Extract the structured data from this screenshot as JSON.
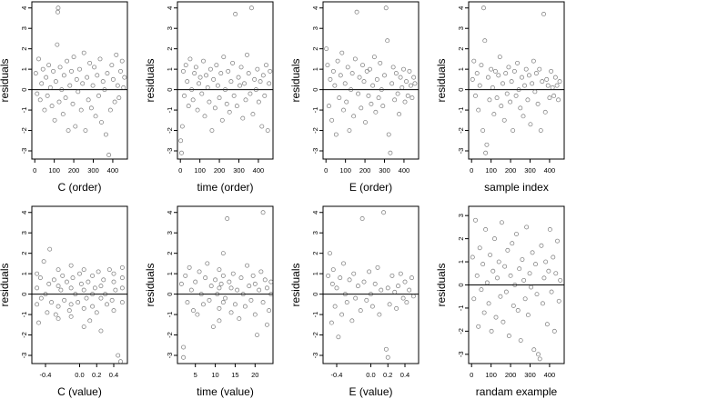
{
  "figure": {
    "panel_count": 8
  },
  "chart_data": [
    {
      "type": "scatter",
      "xlabel": "C (order)",
      "ylabel": "residuals",
      "xlim": [
        -15,
        475
      ],
      "ylim": [
        -3.4,
        4.3
      ],
      "xticks": [
        0,
        100,
        200,
        300,
        400
      ],
      "xtick_labels": [
        "0",
        "100",
        "200",
        "300",
        "400"
      ],
      "yticks": [
        -3,
        -2,
        -1,
        0,
        1,
        2,
        3,
        4
      ],
      "ytick_labels": [
        "-3",
        "-2",
        "-1",
        "0",
        "1",
        "2",
        "3",
        "4"
      ],
      "hline": 0,
      "x": [
        5,
        12,
        20,
        28,
        35,
        42,
        50,
        58,
        65,
        72,
        80,
        88,
        95,
        102,
        108,
        115,
        118,
        120,
        125,
        130,
        138,
        145,
        150,
        158,
        165,
        172,
        180,
        188,
        195,
        200,
        208,
        215,
        222,
        230,
        238,
        245,
        252,
        260,
        268,
        275,
        282,
        290,
        298,
        305,
        312,
        320,
        328,
        335,
        342,
        350,
        358,
        365,
        372,
        380,
        388,
        395,
        402,
        410,
        418,
        425,
        432,
        440,
        448,
        455,
        460
      ],
      "y": [
        0.8,
        -0.2,
        1.5,
        -0.5,
        0.3,
        1.0,
        -1.0,
        0.6,
        -0.3,
        1.2,
        0.1,
        -0.8,
        0.9,
        -1.5,
        0.4,
        2.2,
        3.8,
        4.0,
        -0.6,
        1.1,
        0.0,
        -1.2,
        0.7,
        -0.4,
        1.4,
        -2.0,
        0.2,
        0.9,
        -0.7,
        1.6,
        -1.8,
        0.5,
        -0.1,
        1.0,
        -1.0,
        0.3,
        1.8,
        -2.0,
        0.6,
        -0.5,
        1.3,
        -0.9,
        0.2,
        1.1,
        -1.3,
        0.7,
        -0.3,
        1.5,
        -1.6,
        0.4,
        0.0,
        -2.2,
        0.8,
        -3.2,
        -1.0,
        1.2,
        0.5,
        -0.6,
        1.7,
        0.2,
        -0.4,
        0.9,
        1.4,
        0.1,
        0.6
      ]
    },
    {
      "type": "scatter",
      "xlabel": "time (order)",
      "ylabel": "residuals",
      "xlim": [
        -15,
        475
      ],
      "ylim": [
        -3.4,
        4.3
      ],
      "xticks": [
        0,
        100,
        200,
        300,
        400
      ],
      "xtick_labels": [
        "0",
        "100",
        "200",
        "300",
        "400"
      ],
      "yticks": [
        -3,
        -2,
        -1,
        0,
        1,
        2,
        3,
        4
      ],
      "ytick_labels": [
        "-3",
        "-2",
        "-1",
        "0",
        "1",
        "2",
        "3",
        "4"
      ],
      "hline": 0,
      "x": [
        2,
        6,
        10,
        15,
        20,
        28,
        35,
        42,
        50,
        58,
        65,
        72,
        80,
        88,
        95,
        102,
        110,
        118,
        125,
        132,
        140,
        148,
        155,
        162,
        170,
        178,
        185,
        192,
        200,
        208,
        215,
        222,
        230,
        238,
        245,
        252,
        260,
        268,
        275,
        282,
        290,
        298,
        305,
        312,
        320,
        328,
        335,
        342,
        350,
        358,
        365,
        372,
        380,
        388,
        395,
        402,
        410,
        418,
        425,
        432,
        440,
        448,
        455,
        460
      ],
      "y": [
        -2.5,
        -3.1,
        -1.8,
        0.9,
        -0.3,
        1.2,
        0.4,
        -0.8,
        1.5,
        0.0,
        -0.5,
        0.8,
        1.1,
        -1.0,
        0.3,
        0.6,
        -0.2,
        1.4,
        -1.3,
        0.7,
        0.1,
        -0.6,
        1.0,
        -2.0,
        0.5,
        -0.9,
        1.2,
        0.2,
        -0.4,
        0.8,
        -1.5,
        1.6,
        0.0,
        -0.7,
        0.9,
        -1.1,
        0.4,
        1.3,
        -0.3,
        3.7,
        -0.8,
        0.6,
        0.2,
        1.1,
        -1.4,
        0.3,
        -0.5,
        1.7,
        0.8,
        -0.2,
        4.0,
        -1.2,
        0.5,
        0.0,
        1.0,
        -0.6,
        0.4,
        -1.8,
        0.7,
        -0.3,
        1.2,
        -2.0,
        0.3,
        0.9
      ]
    },
    {
      "type": "scatter",
      "xlabel": "E (order)",
      "ylabel": "residuals",
      "xlim": [
        -15,
        475
      ],
      "ylim": [
        -3.4,
        4.3
      ],
      "xticks": [
        0,
        100,
        200,
        300,
        400
      ],
      "xtick_labels": [
        "0",
        "100",
        "200",
        "300",
        "400"
      ],
      "yticks": [
        -3,
        -2,
        -1,
        0,
        1,
        2,
        3,
        4
      ],
      "ytick_labels": [
        "-3",
        "-2",
        "-1",
        "0",
        "1",
        "2",
        "3",
        "4"
      ],
      "hline": 0,
      "x": [
        2,
        8,
        15,
        22,
        30,
        38,
        45,
        52,
        60,
        68,
        75,
        82,
        90,
        98,
        105,
        112,
        120,
        128,
        135,
        142,
        150,
        158,
        165,
        172,
        180,
        188,
        195,
        202,
        210,
        218,
        225,
        232,
        240,
        248,
        255,
        262,
        270,
        278,
        285,
        292,
        300,
        308,
        315,
        322,
        330,
        338,
        345,
        352,
        360,
        368,
        375,
        382,
        390,
        398,
        405,
        412,
        420,
        428,
        435,
        442,
        450,
        456
      ],
      "y": [
        2.0,
        1.2,
        -0.8,
        0.5,
        -1.5,
        0.9,
        0.2,
        -2.2,
        1.4,
        -0.4,
        0.7,
        1.8,
        -1.0,
        0.3,
        -0.6,
        1.1,
        -2.0,
        0.0,
        0.8,
        -1.3,
        1.5,
        3.8,
        -0.2,
        0.6,
        -0.9,
        1.2,
        0.4,
        -1.6,
        0.9,
        -0.3,
        1.0,
        -0.7,
        0.2,
        1.6,
        -1.1,
        0.5,
        -0.4,
        1.3,
        0.0,
        -0.8,
        0.7,
        4.0,
        2.4,
        -2.2,
        -3.1,
        0.3,
        1.1,
        -0.5,
        0.8,
        -0.2,
        -1.2,
        0.6,
        0.1,
        1.0,
        -0.6,
        0.4,
        -0.3,
        0.9,
        0.2,
        -0.4,
        0.6,
        0.3
      ]
    },
    {
      "type": "scatter",
      "xlabel": "sample index",
      "ylabel": "residuals",
      "xlim": [
        -15,
        475
      ],
      "ylim": [
        -3.4,
        4.3
      ],
      "xticks": [
        0,
        100,
        200,
        300,
        400
      ],
      "xtick_labels": [
        "0",
        "100",
        "200",
        "300",
        "400"
      ],
      "yticks": [
        -3,
        -2,
        -1,
        0,
        1,
        2,
        3,
        4
      ],
      "ytick_labels": [
        "-3",
        "-2",
        "-1",
        "0",
        "1",
        "2",
        "3",
        "4"
      ],
      "hline": 0,
      "x": [
        5,
        12,
        20,
        28,
        35,
        42,
        50,
        58,
        62,
        68,
        72,
        78,
        85,
        92,
        100,
        108,
        115,
        122,
        130,
        138,
        145,
        152,
        160,
        168,
        175,
        182,
        190,
        198,
        205,
        212,
        220,
        228,
        235,
        242,
        250,
        258,
        265,
        272,
        280,
        288,
        295,
        302,
        310,
        318,
        325,
        332,
        340,
        348,
        355,
        362,
        370,
        378,
        385,
        392,
        400,
        408,
        415,
        422,
        430,
        438,
        445,
        452
      ],
      "y": [
        0.5,
        1.4,
        -0.3,
        0.8,
        -1.0,
        0.2,
        1.2,
        -2.0,
        4.0,
        2.4,
        -3.1,
        -2.7,
        0.6,
        -0.5,
        1.0,
        0.1,
        -1.2,
        0.9,
        -0.4,
        0.7,
        1.6,
        -0.8,
        0.3,
        -1.5,
        0.8,
        -0.2,
        1.1,
        -0.6,
        0.4,
        -2.0,
        0.9,
        -0.3,
        1.3,
        0.0,
        -0.9,
        0.6,
        -1.3,
        0.2,
        1.0,
        -0.5,
        0.7,
        -1.7,
        0.3,
        1.4,
        -0.1,
        0.8,
        -0.7,
        1.0,
        -2.0,
        0.4,
        3.7,
        -1.1,
        0.5,
        0.2,
        -0.4,
        0.9,
        0.1,
        -0.3,
        0.6,
        0.2,
        -0.5,
        0.4
      ]
    },
    {
      "type": "scatter",
      "xlabel": "C (value)",
      "ylabel": "residuals",
      "xlim": [
        -0.56,
        0.56
      ],
      "ylim": [
        -3.4,
        4.3
      ],
      "xticks": [
        -0.4,
        0.0,
        0.2,
        0.4
      ],
      "xtick_labels": [
        "-0.4",
        "0.0",
        "0.2",
        "0.4"
      ],
      "yticks": [
        -3,
        -2,
        -1,
        0,
        1,
        2,
        3,
        4
      ],
      "ytick_labels": [
        "-3",
        "-2",
        "-1",
        "0",
        "1",
        "2",
        "3",
        "4"
      ],
      "hline": 0,
      "x": [
        -0.5,
        -0.5,
        -0.5,
        -0.48,
        -0.46,
        -0.45,
        -0.42,
        -0.4,
        -0.38,
        -0.36,
        -0.35,
        -0.33,
        -0.3,
        -0.28,
        -0.25,
        -0.25,
        -0.25,
        -0.25,
        -0.22,
        -0.2,
        -0.18,
        -0.15,
        -0.12,
        -0.1,
        -0.1,
        -0.1,
        -0.1,
        -0.08,
        -0.05,
        -0.02,
        0.0,
        0.02,
        0.05,
        0.05,
        0.05,
        0.05,
        0.08,
        0.1,
        0.12,
        0.15,
        0.15,
        0.15,
        0.18,
        0.2,
        0.22,
        0.25,
        0.25,
        0.25,
        0.28,
        0.3,
        0.32,
        0.35,
        0.38,
        0.4,
        0.4,
        0.4,
        0.42,
        0.45,
        0.48,
        0.5,
        0.5,
        0.5,
        0.5
      ],
      "y": [
        1.0,
        -0.5,
        0.3,
        -1.4,
        0.8,
        -0.2,
        1.6,
        0.0,
        -0.9,
        0.5,
        2.2,
        -0.4,
        0.7,
        -1.0,
        1.2,
        0.4,
        -0.6,
        -1.2,
        0.2,
        0.9,
        -0.3,
        0.6,
        -0.8,
        1.4,
        0.3,
        -0.5,
        -1.1,
        0.8,
        0.0,
        -0.4,
        1.0,
        0.5,
        -0.7,
        0.2,
        1.2,
        -1.6,
        -0.2,
        0.6,
        -1.3,
        0.9,
        0.0,
        -0.6,
        0.3,
        -0.9,
        1.1,
        0.4,
        -0.2,
        -1.8,
        0.7,
        0.0,
        -0.5,
        1.2,
        -0.3,
        0.6,
        -0.8,
        1.0,
        0.2,
        -3.0,
        -3.3,
        0.8,
        0.3,
        -0.4,
        1.3
      ]
    },
    {
      "type": "scatter",
      "xlabel": "time (value)",
      "ylabel": "residuals",
      "xlim": [
        0.5,
        24.5
      ],
      "ylim": [
        -3.4,
        4.3
      ],
      "xticks": [
        5,
        10,
        15,
        20
      ],
      "xtick_labels": [
        "5",
        "10",
        "15",
        "20"
      ],
      "yticks": [
        -3,
        -2,
        -1,
        0,
        1,
        2,
        3,
        4
      ],
      "ytick_labels": [
        "-3",
        "-2",
        "-1",
        "0",
        "1",
        "2",
        "3",
        "4"
      ],
      "hline": 0,
      "x": [
        1.5,
        2,
        2,
        2.5,
        3,
        3.5,
        4,
        4.5,
        5,
        5.5,
        6,
        6.5,
        7,
        7.5,
        8,
        8.5,
        9,
        9.5,
        10,
        10.5,
        11,
        11,
        11,
        11,
        11.5,
        12,
        12,
        12,
        12.5,
        13,
        13.5,
        14,
        14,
        14.5,
        15,
        15.5,
        16,
        16.5,
        17,
        17.5,
        18,
        18.5,
        19,
        19.5,
        20,
        20,
        20.5,
        21,
        21.5,
        22,
        22,
        22.5,
        23,
        23,
        23.5,
        24,
        24
      ],
      "y": [
        0.5,
        -2.6,
        -3.1,
        0.9,
        -0.4,
        1.3,
        0.2,
        -0.8,
        0.6,
        -1.0,
        1.1,
        0.0,
        -0.5,
        0.8,
        1.5,
        -0.3,
        0.4,
        -1.6,
        0.7,
        0.0,
        1.2,
        0.3,
        -0.7,
        -1.3,
        0.5,
        2.0,
        -0.4,
        0.9,
        -0.2,
        3.7,
        0.6,
        -0.9,
        0.3,
        1.0,
        -0.5,
        0.2,
        -1.2,
        0.8,
        0.0,
        -0.6,
        1.4,
        0.4,
        -0.3,
        0.9,
        -1.0,
        0.5,
        -2.0,
        0.2,
        1.1,
        -0.4,
        4.0,
        0.7,
        -1.5,
        0.3,
        -0.8,
        0.6,
        0.0
      ]
    },
    {
      "type": "scatter",
      "xlabel": "E (value)",
      "ylabel": "residuals",
      "xlim": [
        -0.56,
        0.56
      ],
      "ylim": [
        -3.4,
        4.3
      ],
      "xticks": [
        -0.4,
        0.0,
        0.2,
        0.4
      ],
      "xtick_labels": [
        "-0.4",
        "0.0",
        "0.2",
        "0.4"
      ],
      "yticks": [
        -3,
        -2,
        -1,
        0,
        1,
        2,
        3,
        4
      ],
      "ytick_labels": [
        "-3",
        "-2",
        "-1",
        "0",
        "1",
        "2",
        "3",
        "4"
      ],
      "hline": 0,
      "x": [
        -0.5,
        -0.48,
        -0.46,
        -0.45,
        -0.44,
        -0.42,
        -0.4,
        -0.38,
        -0.36,
        -0.34,
        -0.32,
        -0.3,
        -0.28,
        -0.25,
        -0.22,
        -0.2,
        -0.18,
        -0.15,
        -0.12,
        -0.1,
        -0.08,
        -0.05,
        -0.02,
        0.0,
        0.02,
        0.05,
        0.08,
        0.1,
        0.12,
        0.15,
        0.18,
        0.2,
        0.2,
        0.22,
        0.25,
        0.28,
        0.3,
        0.32,
        0.35,
        0.38,
        0.4,
        0.42,
        0.45,
        0.48,
        0.5
      ],
      "y": [
        0.9,
        2.0,
        -1.4,
        0.5,
        1.2,
        -0.6,
        0.3,
        -2.1,
        0.8,
        -1.0,
        1.5,
        0.0,
        -0.4,
        0.7,
        -1.3,
        1.0,
        -0.2,
        0.4,
        -0.8,
        3.7,
        0.6,
        -0.3,
        1.1,
        0.0,
        -0.6,
        0.5,
        1.3,
        -1.0,
        0.2,
        4.0,
        -2.7,
        -3.1,
        0.3,
        -0.5,
        0.9,
        0.1,
        -0.7,
        0.4,
        1.0,
        -0.2,
        0.6,
        -0.4,
        0.2,
        0.8,
        -0.1
      ]
    },
    {
      "type": "scatter",
      "xlabel": "randam example",
      "ylabel": "residuals",
      "xlim": [
        -15,
        475
      ],
      "ylim": [
        -3.4,
        3.4
      ],
      "xticks": [
        0,
        100,
        200,
        300,
        400
      ],
      "xtick_labels": [
        "0",
        "100",
        "200",
        "300",
        "400"
      ],
      "yticks": [
        -3,
        -2,
        -1,
        0,
        1,
        2,
        3
      ],
      "ytick_labels": [
        "-3",
        "-2",
        "-1",
        "0",
        "1",
        "2",
        "3"
      ],
      "hline": 0,
      "x": [
        5,
        12,
        20,
        28,
        35,
        42,
        50,
        58,
        65,
        72,
        80,
        88,
        95,
        102,
        110,
        118,
        125,
        132,
        140,
        148,
        155,
        162,
        170,
        178,
        185,
        192,
        200,
        208,
        215,
        222,
        230,
        238,
        245,
        252,
        260,
        268,
        275,
        282,
        290,
        298,
        305,
        312,
        320,
        328,
        335,
        342,
        350,
        358,
        365,
        372,
        380,
        388,
        395,
        402,
        410,
        418,
        425,
        432,
        440,
        448,
        455
      ],
      "y": [
        1.2,
        -0.6,
        2.8,
        0.4,
        -1.8,
        1.6,
        -0.2,
        0.9,
        -1.2,
        2.4,
        0.1,
        -0.8,
        1.3,
        -2.0,
        0.6,
        2.0,
        -1.4,
        0.3,
        1.0,
        -0.5,
        2.7,
        -1.6,
        0.8,
        -0.3,
        1.5,
        -2.2,
        0.4,
        1.8,
        -0.9,
        0.0,
        2.2,
        -1.1,
        0.7,
        -2.4,
        1.1,
        0.2,
        -0.6,
        2.5,
        -1.3,
        0.5,
        -0.1,
        1.4,
        -2.8,
        0.9,
        -0.4,
        -3.0,
        -3.2,
        1.7,
        -0.8,
        0.3,
        1.0,
        -1.7,
        0.6,
        2.4,
        -0.3,
        1.2,
        -2.0,
        0.5,
        1.9,
        -0.7,
        0.2
      ]
    }
  ]
}
